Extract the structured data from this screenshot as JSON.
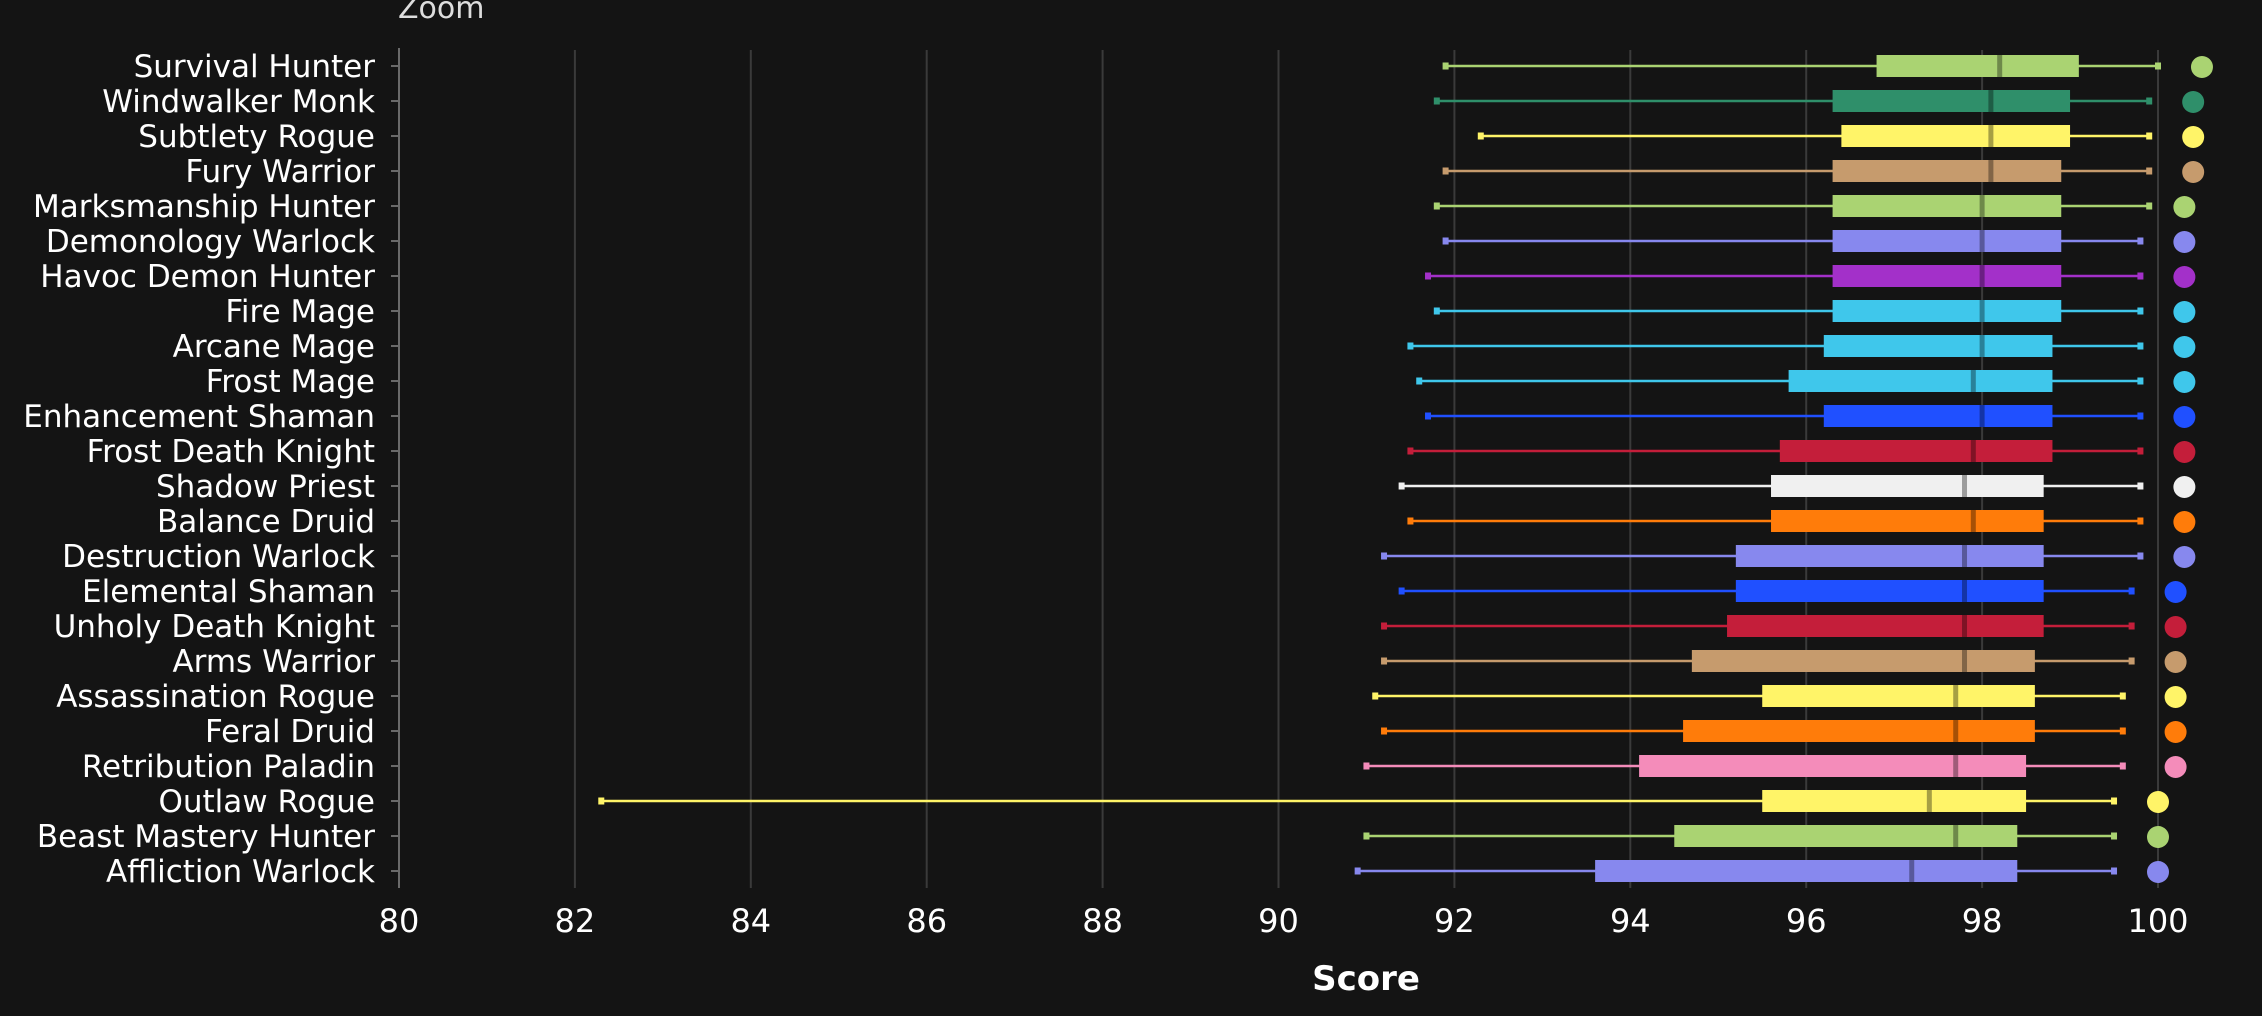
{
  "zoom_label": "Zoom",
  "chart_data": {
    "type": "boxplot",
    "xlabel": "Score",
    "xlim": [
      80,
      100
    ],
    "x_ticks": [
      "80",
      "82",
      "84",
      "86",
      "88",
      "90",
      "92",
      "94",
      "96",
      "98",
      "100"
    ],
    "grid": true,
    "series": [
      {
        "category": "Survival Hunter",
        "color": "#aad372",
        "min": 91.9,
        "q1": 96.8,
        "median": 98.2,
        "q3": 99.1,
        "max": 100.0,
        "top": 100.5
      },
      {
        "category": "Windwalker Monk",
        "color": "#2f8f6a",
        "min": 91.8,
        "q1": 96.3,
        "median": 98.1,
        "q3": 99.0,
        "max": 99.9,
        "top": 100.4
      },
      {
        "category": "Subtlety Rogue",
        "color": "#fff468",
        "min": 92.3,
        "q1": 96.4,
        "median": 98.1,
        "q3": 99.0,
        "max": 99.9,
        "top": 100.4
      },
      {
        "category": "Fury Warrior",
        "color": "#c69b6d",
        "min": 91.9,
        "q1": 96.3,
        "median": 98.1,
        "q3": 98.9,
        "max": 99.9,
        "top": 100.4
      },
      {
        "category": "Marksmanship Hunter",
        "color": "#aad372",
        "min": 91.8,
        "q1": 96.3,
        "median": 98.0,
        "q3": 98.9,
        "max": 99.9,
        "top": 100.3
      },
      {
        "category": "Demonology Warlock",
        "color": "#8788ee",
        "min": 91.9,
        "q1": 96.3,
        "median": 98.0,
        "q3": 98.9,
        "max": 99.8,
        "top": 100.3
      },
      {
        "category": "Havoc Demon Hunter",
        "color": "#a330c9",
        "min": 91.7,
        "q1": 96.3,
        "median": 98.0,
        "q3": 98.9,
        "max": 99.8,
        "top": 100.3
      },
      {
        "category": "Fire Mage",
        "color": "#3fc7eb",
        "min": 91.8,
        "q1": 96.3,
        "median": 98.0,
        "q3": 98.9,
        "max": 99.8,
        "top": 100.3
      },
      {
        "category": "Arcane Mage",
        "color": "#3fc7eb",
        "min": 91.5,
        "q1": 96.2,
        "median": 98.0,
        "q3": 98.8,
        "max": 99.8,
        "top": 100.3
      },
      {
        "category": "Frost Mage",
        "color": "#3fc7eb",
        "min": 91.6,
        "q1": 95.8,
        "median": 97.9,
        "q3": 98.8,
        "max": 99.8,
        "top": 100.3
      },
      {
        "category": "Enhancement Shaman",
        "color": "#2050ff",
        "min": 91.7,
        "q1": 96.2,
        "median": 98.0,
        "q3": 98.8,
        "max": 99.8,
        "top": 100.3
      },
      {
        "category": "Frost Death Knight",
        "color": "#c41e3a",
        "min": 91.5,
        "q1": 95.7,
        "median": 97.9,
        "q3": 98.8,
        "max": 99.8,
        "top": 100.3
      },
      {
        "category": "Shadow Priest",
        "color": "#f0f0f0",
        "min": 91.4,
        "q1": 95.6,
        "median": 97.8,
        "q3": 98.7,
        "max": 99.8,
        "top": 100.3
      },
      {
        "category": "Balance Druid",
        "color": "#ff7c0a",
        "min": 91.5,
        "q1": 95.6,
        "median": 97.9,
        "q3": 98.7,
        "max": 99.8,
        "top": 100.3
      },
      {
        "category": "Destruction Warlock",
        "color": "#8788ee",
        "min": 91.2,
        "q1": 95.2,
        "median": 97.8,
        "q3": 98.7,
        "max": 99.8,
        "top": 100.3
      },
      {
        "category": "Elemental Shaman",
        "color": "#2050ff",
        "min": 91.4,
        "q1": 95.2,
        "median": 97.8,
        "q3": 98.7,
        "max": 99.7,
        "top": 100.2
      },
      {
        "category": "Unholy Death Knight",
        "color": "#c41e3a",
        "min": 91.2,
        "q1": 95.1,
        "median": 97.8,
        "q3": 98.7,
        "max": 99.7,
        "top": 100.2
      },
      {
        "category": "Arms Warrior",
        "color": "#c69b6d",
        "min": 91.2,
        "q1": 94.7,
        "median": 97.8,
        "q3": 98.6,
        "max": 99.7,
        "top": 100.2
      },
      {
        "category": "Assassination Rogue",
        "color": "#fff468",
        "min": 91.1,
        "q1": 95.5,
        "median": 97.7,
        "q3": 98.6,
        "max": 99.6,
        "top": 100.2
      },
      {
        "category": "Feral Druid",
        "color": "#ff7c0a",
        "min": 91.2,
        "q1": 94.6,
        "median": 97.7,
        "q3": 98.6,
        "max": 99.6,
        "top": 100.2
      },
      {
        "category": "Retribution Paladin",
        "color": "#f48cba",
        "min": 91.0,
        "q1": 94.1,
        "median": 97.7,
        "q3": 98.5,
        "max": 99.6,
        "top": 100.2
      },
      {
        "category": "Outlaw Rogue",
        "color": "#fff468",
        "min": 82.3,
        "q1": 95.5,
        "median": 97.4,
        "q3": 98.5,
        "max": 99.5,
        "top": 100.0
      },
      {
        "category": "Beast Mastery Hunter",
        "color": "#aad372",
        "min": 91.0,
        "q1": 94.5,
        "median": 97.7,
        "q3": 98.4,
        "max": 99.5,
        "top": 100.0
      },
      {
        "category": "Affliction Warlock",
        "color": "#8788ee",
        "min": 90.9,
        "q1": 93.6,
        "median": 97.2,
        "q3": 98.4,
        "max": 99.5,
        "top": 100.0
      }
    ]
  }
}
